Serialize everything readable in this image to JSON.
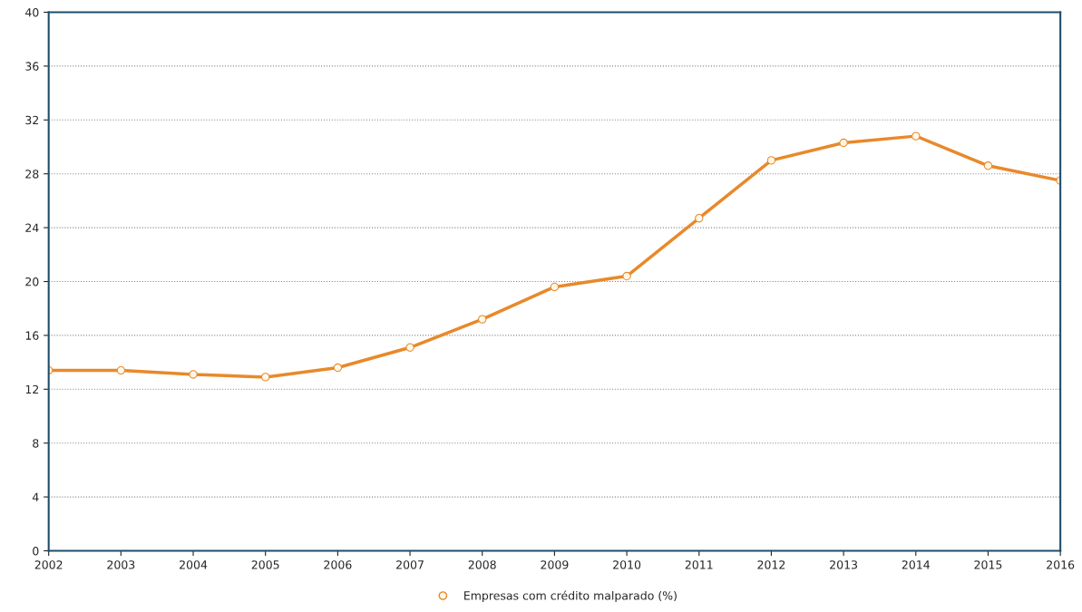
{
  "chart_data": {
    "type": "line",
    "categories": [
      "2002",
      "2003",
      "2004",
      "2005",
      "2006",
      "2007",
      "2008",
      "2009",
      "2010",
      "2011",
      "2012",
      "2013",
      "2014",
      "2015",
      "2016"
    ],
    "series": [
      {
        "name": "Empresas com crédito malparado (%)",
        "color": "#e8892b",
        "values": [
          13.4,
          13.4,
          13.1,
          12.9,
          13.6,
          15.1,
          17.2,
          19.6,
          20.4,
          24.7,
          29.0,
          30.3,
          30.8,
          28.6,
          27.5
        ]
      }
    ],
    "ylim": [
      0,
      40
    ],
    "yticks": [
      0,
      4,
      8,
      12,
      16,
      20,
      24,
      28,
      32,
      36,
      40
    ],
    "grid": "y",
    "legend": "bottom",
    "marker": "circle",
    "line_style": "solid"
  }
}
